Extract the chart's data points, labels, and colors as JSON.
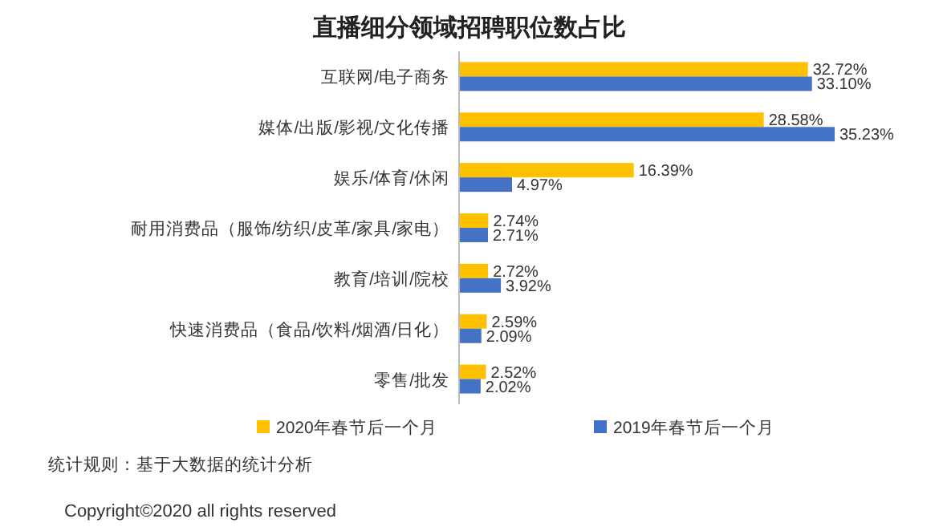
{
  "chart_data": {
    "type": "bar",
    "orientation": "horizontal",
    "title": "直播细分领域招聘职位数占比",
    "categories": [
      "互联网/电子商务",
      "媒体/出版/影视/文化传播",
      "娱乐/体育/休闲",
      "耐用消费品（服饰/纺织/皮革/家具/家电）",
      "教育/培训/院校",
      "快速消费品（食品/饮料/烟酒/日化）",
      "零售/批发"
    ],
    "series": [
      {
        "name": "2020年春节后一个月",
        "color": "#ffc000",
        "values": [
          32.72,
          28.58,
          16.39,
          2.74,
          2.72,
          2.59,
          2.52
        ],
        "value_labels": [
          "32.72%",
          "28.58%",
          "16.39%",
          "2.74%",
          "2.72%",
          "2.59%",
          "2.52%"
        ]
      },
      {
        "name": "2019年春节后一个月",
        "color": "#4472c4",
        "values": [
          33.1,
          35.23,
          4.97,
          2.71,
          3.92,
          2.09,
          2.02
        ],
        "value_labels": [
          "33.10%",
          "35.23%",
          "4.97%",
          "2.71%",
          "3.92%",
          "2.09%",
          "2.02%"
        ]
      }
    ],
    "legend": "bottom",
    "annotations": [
      "统计规则：基于大数据的统计分析",
      "Copyright©2020 all rights reserved"
    ]
  }
}
